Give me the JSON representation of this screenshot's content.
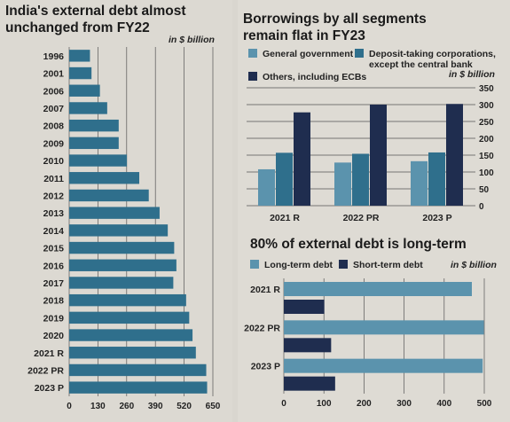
{
  "colors": {
    "light_teal": "#5b93ad",
    "mid_teal": "#2f6f8c",
    "navy": "#1f2d4f",
    "grid": "#555555"
  },
  "chart_data": [
    {
      "id": "external-debt",
      "type": "bar",
      "orientation": "horizontal",
      "title": "India's external debt almost unchanged from FY22",
      "unit": "in $ billion",
      "categories": [
        "1996",
        "2001",
        "2006",
        "2007",
        "2008",
        "2009",
        "2010",
        "2011",
        "2012",
        "2013",
        "2014",
        "2015",
        "2016",
        "2017",
        "2018",
        "2019",
        "2020",
        "2021 R",
        "2022 PR",
        "2023 P"
      ],
      "values": [
        94,
        101,
        139,
        172,
        224,
        224,
        261,
        317,
        360,
        409,
        446,
        475,
        485,
        471,
        529,
        543,
        558,
        573,
        620,
        624
      ],
      "xticks": [
        0,
        130,
        260,
        390,
        520,
        650
      ],
      "xlim": [
        0,
        650
      ],
      "grid": true
    },
    {
      "id": "borrowings",
      "type": "bar",
      "orientation": "vertical",
      "title": "Borrowings by all segments remain flat in FY23",
      "unit": "in $ billion",
      "categories": [
        "2021 R",
        "2022 PR",
        "2023 P"
      ],
      "series": [
        {
          "name": "General government",
          "color": "#5b93ad",
          "values": [
            108,
            128,
            132
          ]
        },
        {
          "name": "Deposit-taking corporations, except the central bank",
          "color": "#2f6f8c",
          "values": [
            157,
            154,
            158
          ]
        },
        {
          "name": "Others, including ECBs",
          "color": "#1f2d4f",
          "values": [
            277,
            300,
            302
          ]
        }
      ],
      "yticks": [
        0,
        50,
        100,
        150,
        200,
        250,
        300,
        350
      ],
      "ylim": [
        0,
        350
      ],
      "grid": true
    },
    {
      "id": "long-term",
      "type": "bar",
      "orientation": "horizontal",
      "title": "80% of external debt is long-term",
      "unit": "in $ billion",
      "categories": [
        "2021 R",
        "2022 PR",
        "2023 P"
      ],
      "series": [
        {
          "name": "Long-term debt",
          "color": "#5b93ad",
          "values": [
            469,
            499,
            496
          ]
        },
        {
          "name": "Short-term debt",
          "color": "#1f2d4f",
          "values": [
            101,
            118,
            128
          ]
        }
      ],
      "xticks": [
        0,
        100,
        200,
        300,
        400,
        500
      ],
      "xlim": [
        0,
        500
      ],
      "grid": true
    }
  ]
}
